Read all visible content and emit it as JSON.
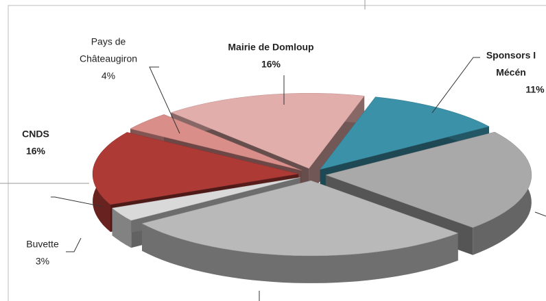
{
  "chart_data": {
    "type": "pie3d",
    "categories": [
      [
        "Mairie de Domloup"
      ],
      [
        "Sponsors I",
        "Mécén"
      ],
      null,
      null,
      [
        "Buvette"
      ],
      [
        "CNDS"
      ],
      [
        "Pays de",
        "Châteaugiron"
      ]
    ],
    "values": [
      16,
      11,
      22,
      28,
      3,
      16,
      4
    ],
    "value_labels": [
      "16%",
      "11%",
      null,
      null,
      "3%",
      "16%",
      "4%"
    ],
    "colors": [
      "#e2aeac",
      "#3b91a8",
      "#a9a9a9",
      "#b9b9b9",
      "#d9d9d9",
      "#ae3a36",
      "#d98e8a"
    ],
    "bold": [
      true,
      true,
      false,
      false,
      false,
      true,
      false
    ]
  }
}
